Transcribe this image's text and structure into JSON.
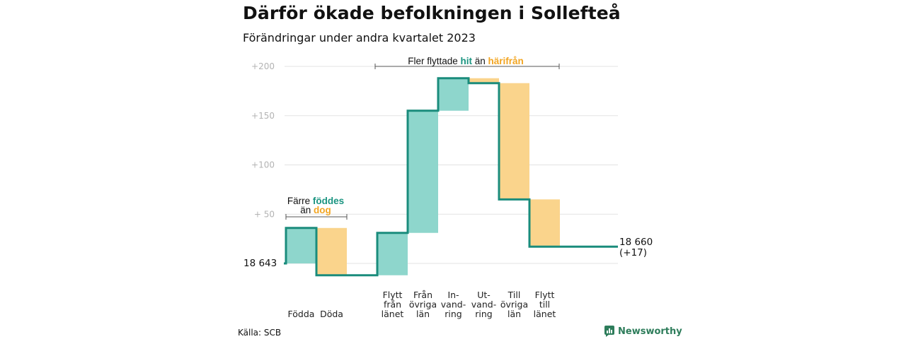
{
  "title": "Därför ökade befolkningen i Sollefteå",
  "subtitle": "Förändringar under andra kvartalet 2023",
  "source": "Källa: SCB",
  "brand": "Newsworthy",
  "colors": {
    "increase": "#8ed6cc",
    "decrease": "#fad48c",
    "line": "#1a8c7c",
    "hit": "#1a9480",
    "dog": "#f2a522"
  },
  "chart_data": {
    "type": "waterfall",
    "start_label": "18  643",
    "end_label": "18 660",
    "end_change": "(+17)",
    "baseline": 18643,
    "ylim": [
      -12,
      200
    ],
    "yticks": [
      {
        "value": 200,
        "label": "+200"
      },
      {
        "value": 150,
        "label": "+150"
      },
      {
        "value": 100,
        "label": "+100"
      },
      {
        "value": 50,
        "label": "+  50"
      }
    ],
    "grid": true,
    "steps": [
      {
        "label": [
          "Födda"
        ],
        "value": 36,
        "kind": "increase"
      },
      {
        "label": [
          "Döda"
        ],
        "value": -48,
        "kind": "decrease"
      },
      {
        "label": [],
        "value": 0,
        "kind": "gap"
      },
      {
        "label": [
          "Flytt",
          "från",
          "länet"
        ],
        "value": 43,
        "kind": "increase"
      },
      {
        "label": [
          "Från",
          "övriga",
          "län"
        ],
        "value": 124,
        "kind": "increase"
      },
      {
        "label": [
          "In-",
          "vand-",
          "ring"
        ],
        "value": 33,
        "kind": "increase"
      },
      {
        "label": [
          "Ut-",
          "vand-",
          "ring"
        ],
        "value": -5,
        "kind": "decrease"
      },
      {
        "label": [
          "Till",
          "övriga",
          "län"
        ],
        "value": -118,
        "kind": "decrease"
      },
      {
        "label": [
          "Flytt",
          "till",
          "länet"
        ],
        "value": -48,
        "kind": "decrease"
      }
    ],
    "annotations": {
      "left": {
        "line1_pre": "Färre ",
        "line1_hl": "föddes",
        "line2_pre": "än ",
        "line2_hl": "dog"
      },
      "right": {
        "pre": "Fler flyttade ",
        "hl1": "hit",
        "mid": "  än ",
        "hl2": "härifrån"
      }
    }
  }
}
